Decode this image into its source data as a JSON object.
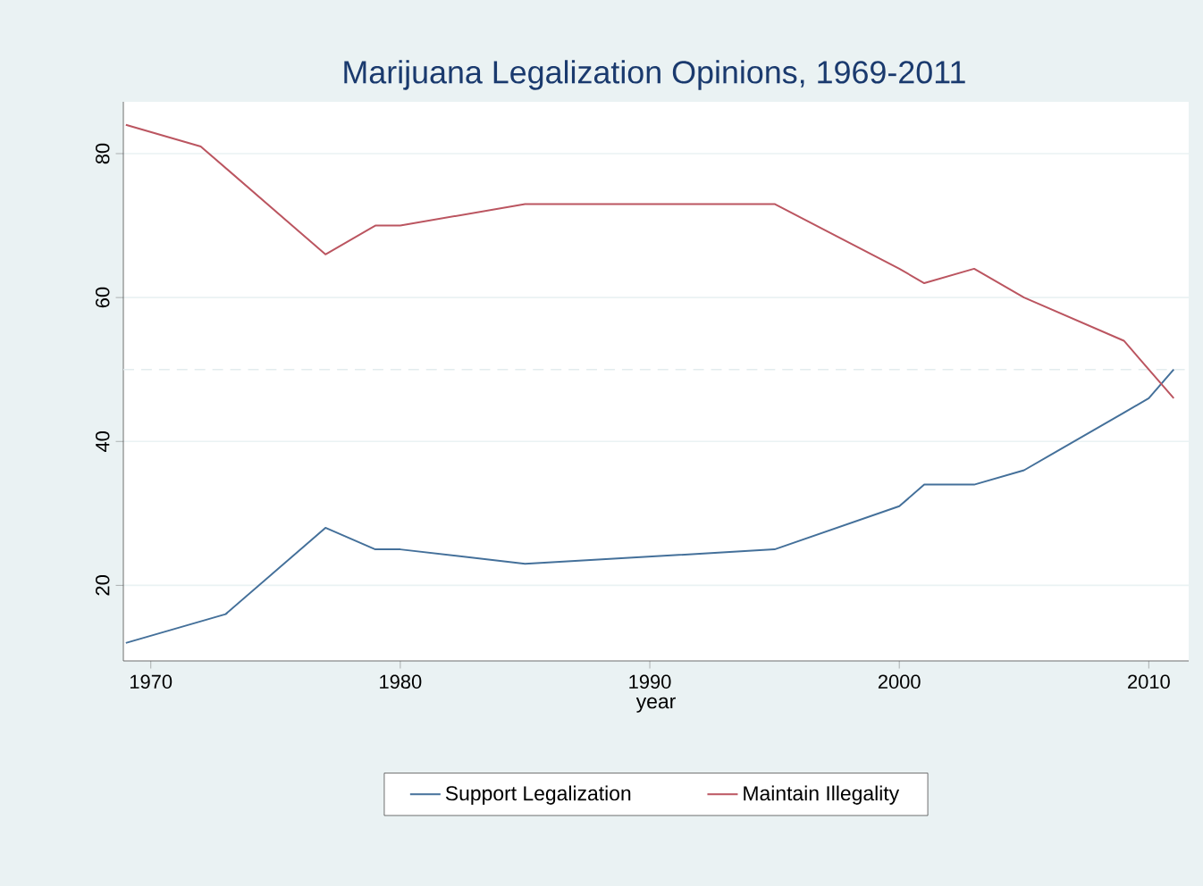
{
  "chart_data": {
    "type": "line",
    "title": "Marijuana Legalization Opinions, 1969-2011",
    "xlabel": "year",
    "series": [
      {
        "name": "Support Legalization",
        "color": "#44709a",
        "x": [
          1969,
          1973,
          1977,
          1979,
          1980,
          1985,
          1995,
          2000,
          2001,
          2003,
          2005,
          2009,
          2010,
          2011
        ],
        "values": [
          12,
          16,
          28,
          25,
          25,
          23,
          25,
          31,
          34,
          34,
          36,
          44,
          46,
          50
        ]
      },
      {
        "name": "Maintain Illegality",
        "color": "#bb5560",
        "x": [
          1969,
          1972,
          1977,
          1979,
          1980,
          1985,
          1995,
          2000,
          2001,
          2003,
          2005,
          2009,
          2011
        ],
        "values": [
          84,
          81,
          66,
          70,
          70,
          73,
          73,
          64,
          62,
          64,
          60,
          54,
          46
        ]
      }
    ],
    "xlim": [
      1968.9,
      2011.6
    ],
    "ylim": [
      9.5,
      87.2
    ],
    "xticks": [
      1970,
      1980,
      1990,
      2000,
      2010
    ],
    "yticks": [
      20,
      40,
      60,
      80
    ],
    "grid": "y",
    "legend": "bottom",
    "ref_lines": [
      {
        "axis": "y",
        "value": 50,
        "color": "#e3ecee",
        "line_style": "dashed"
      }
    ]
  }
}
